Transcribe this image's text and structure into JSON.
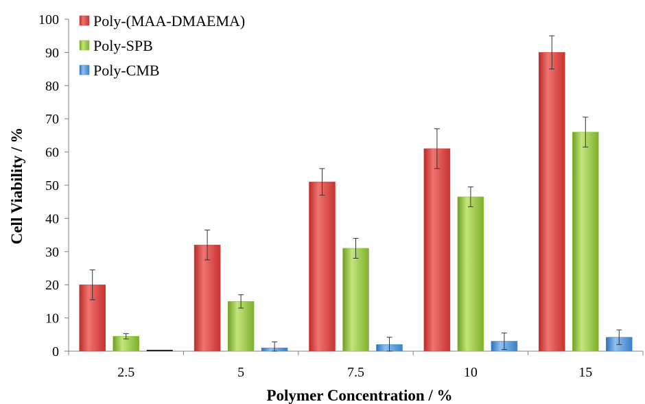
{
  "chart_data": {
    "type": "bar",
    "title": "",
    "xlabel": "Polymer Concentration / %",
    "ylabel": "Cell Viability / %",
    "ylim": [
      0,
      100
    ],
    "yticks": [
      0,
      10,
      20,
      30,
      40,
      50,
      60,
      70,
      80,
      90,
      100
    ],
    "grid": false,
    "legend_position": "top-left",
    "categories": [
      "2.5",
      "5",
      "7.5",
      "10",
      "15"
    ],
    "series": [
      {
        "name": "Poly-(MAA-DMAEMA)",
        "color": "#d9403c",
        "values": [
          20,
          32,
          51,
          61,
          90
        ],
        "errors": [
          4.5,
          4.5,
          4,
          6,
          5
        ]
      },
      {
        "name": "Poly-SPB",
        "color": "#92c83e",
        "values": [
          4.5,
          15,
          31,
          46.5,
          66
        ],
        "errors": [
          0.8,
          2,
          3,
          3,
          4.5
        ]
      },
      {
        "name": "Poly-CMB",
        "color": "#4a8fd4",
        "values": [
          0,
          1,
          2,
          3,
          4.2
        ],
        "errors": [
          0,
          1.8,
          2.2,
          2.5,
          2.2
        ]
      }
    ]
  }
}
